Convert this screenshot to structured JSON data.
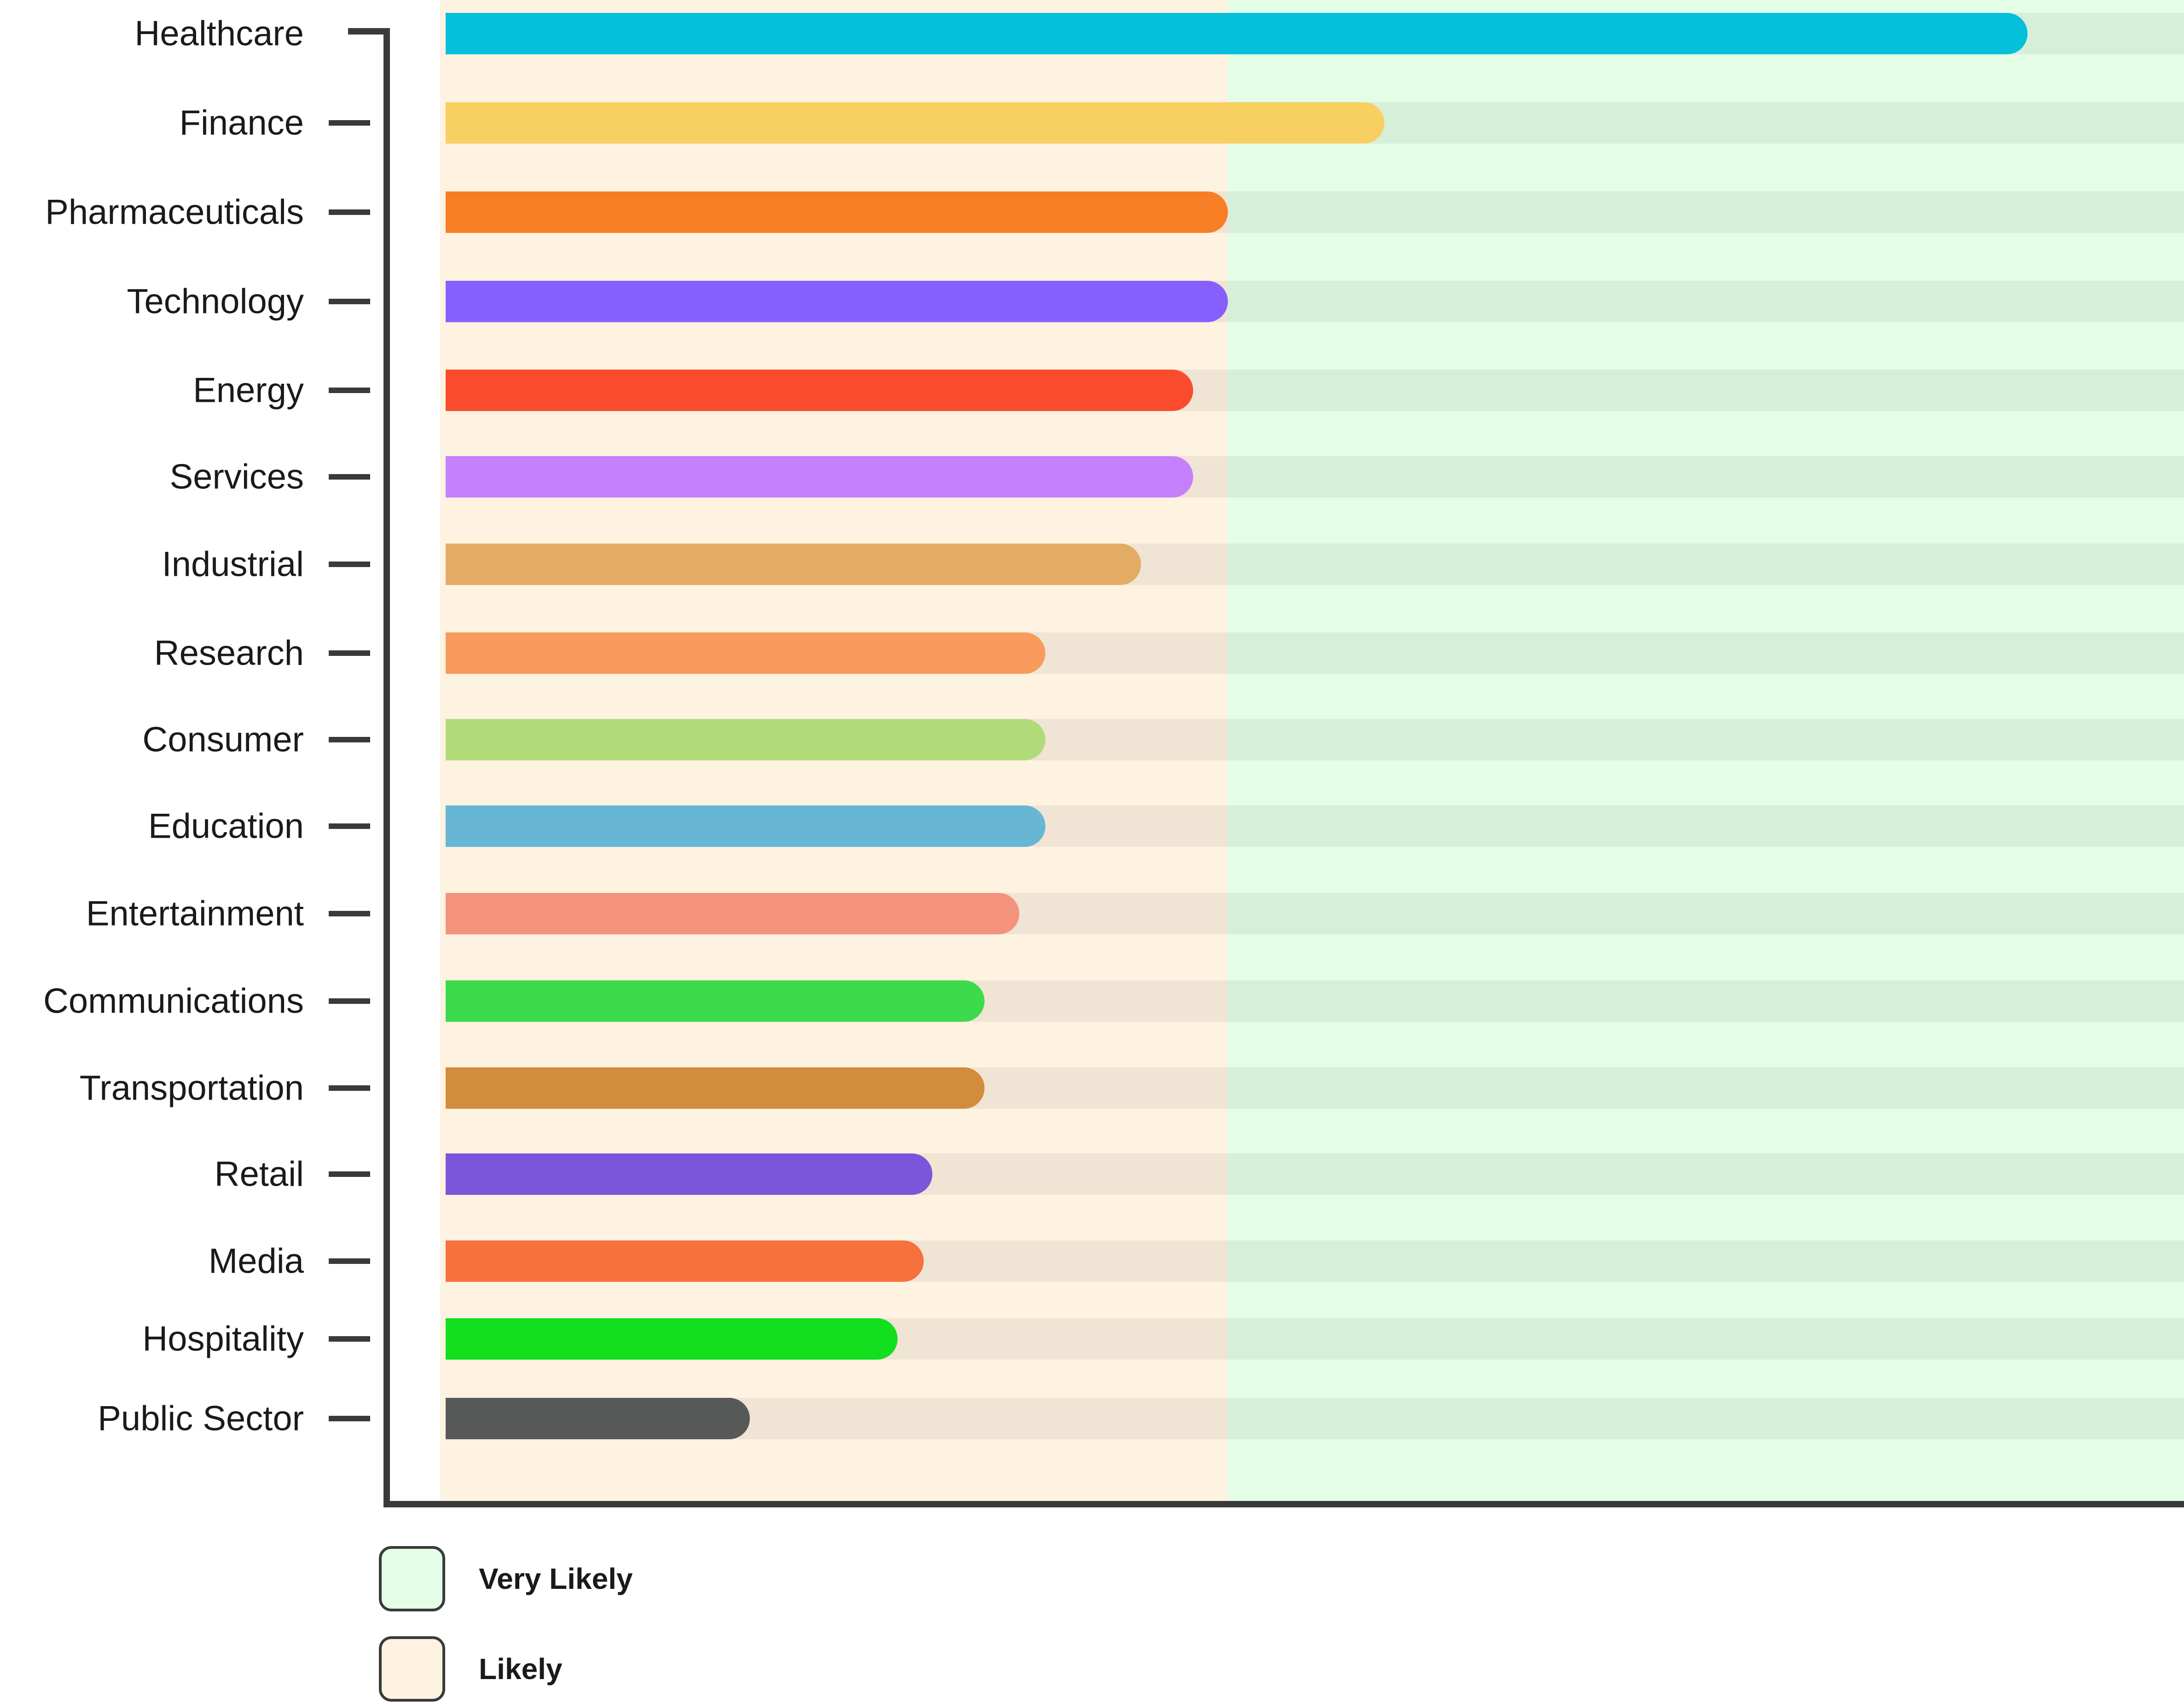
{
  "chart_data": {
    "type": "bar",
    "orientation": "horizontal",
    "title": "",
    "xlabel": "",
    "ylabel": "",
    "xlim": [
      0,
      100
    ],
    "categories": [
      "Healthcare",
      "Finance",
      "Pharmaceuticals",
      "Technology",
      "Energy",
      "Services",
      "Industrial",
      "Research",
      "Consumer",
      "Education",
      "Entertainment",
      "Communications",
      "Transportation",
      "Retail",
      "Media",
      "Hospitality",
      "Public Sector"
    ],
    "values": [
      91,
      54,
      45,
      45,
      43,
      43,
      40,
      34.5,
      34.5,
      34.5,
      33,
      31,
      31,
      28,
      27.5,
      26,
      17.5
    ],
    "colors": [
      "#06BFDA",
      "#F8D062",
      "#F77E24",
      "#8660FE",
      "#FA4C2C",
      "#C580FC",
      "#E2AC64",
      "#F89B5C",
      "#B1DB79",
      "#66B6D4",
      "#F4937C",
      "#3CDB4C",
      "#D28C3C",
      "#7A56DA",
      "#F7713C",
      "#12DF1E",
      "#565957"
    ],
    "zones": [
      {
        "label": "Likely",
        "from": 0,
        "to": 45,
        "color": "#FEF2E1"
      },
      {
        "label": "Very Likely",
        "from": 45,
        "to": 100,
        "color": "#E3FDE6"
      }
    ],
    "grid": false,
    "legend": {
      "position": "bottom-left",
      "items": [
        {
          "label": "Very Likely",
          "color": "#E3FDE6"
        },
        {
          "label": "Likely",
          "color": "#FEF2E1"
        }
      ]
    }
  }
}
